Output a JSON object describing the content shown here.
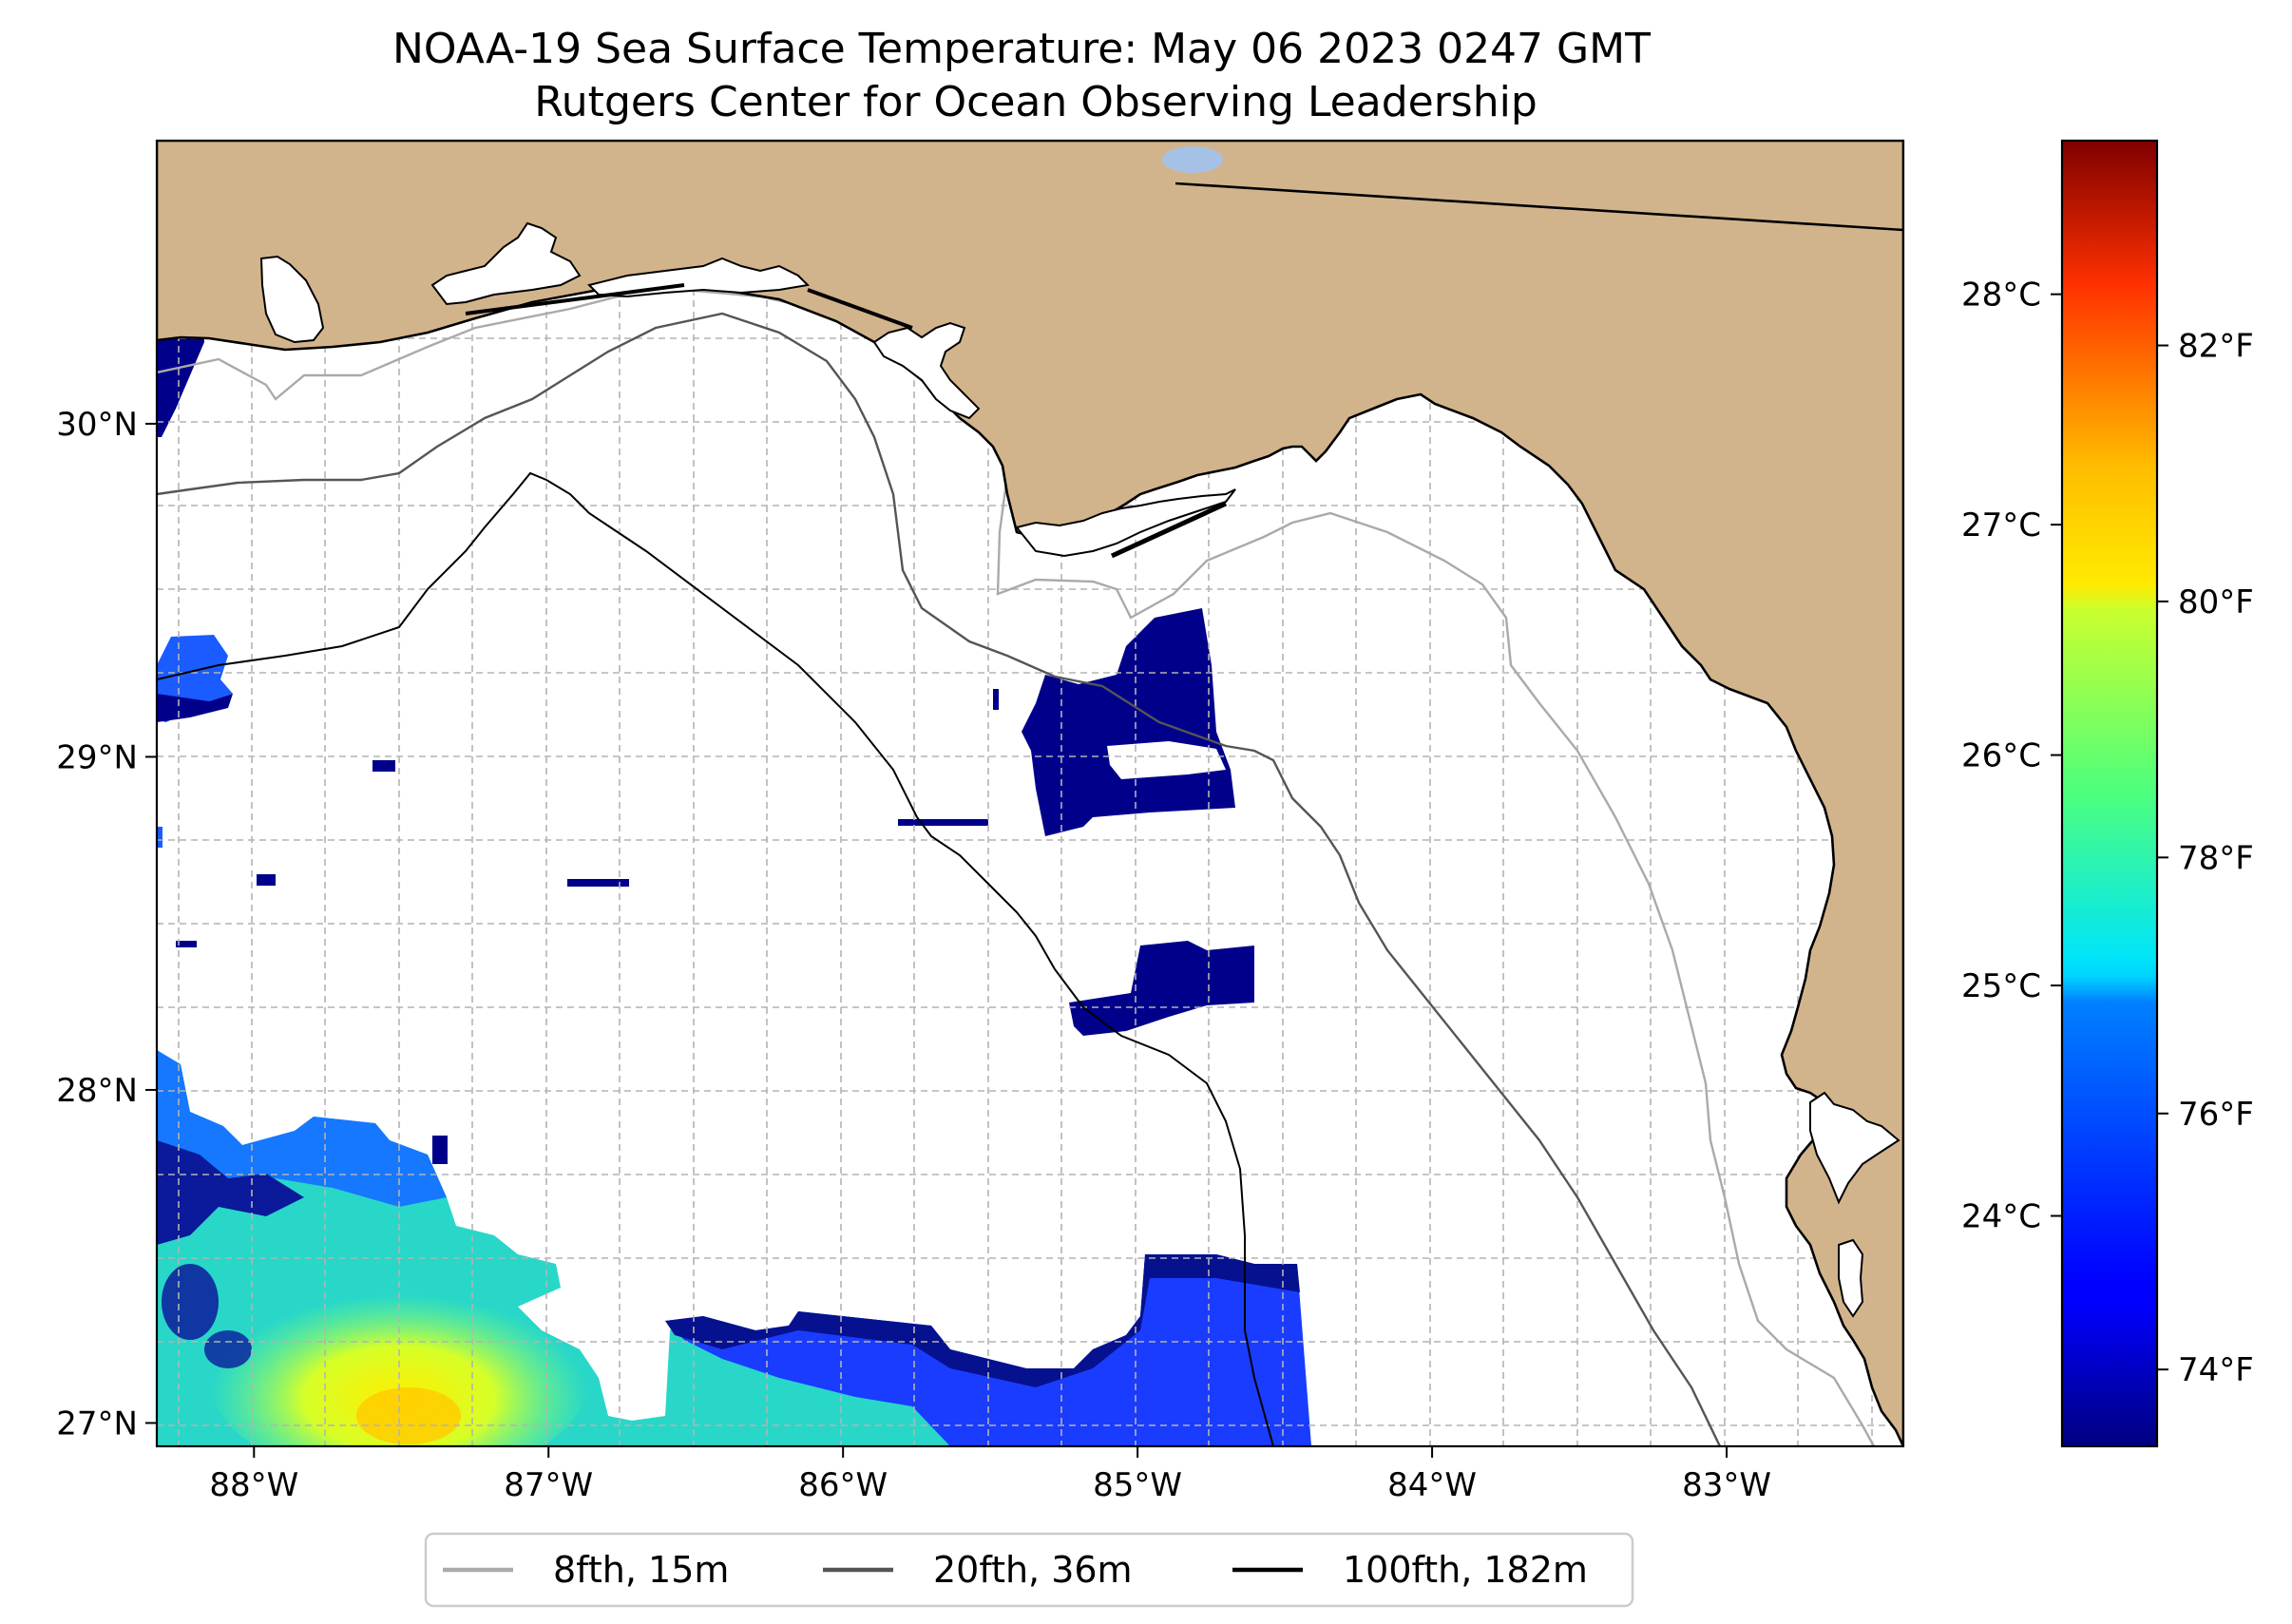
{
  "title": {
    "line1": "NOAA-19 Sea Surface Temperature: May 06 2023 0247 GMT",
    "line2": "Rutgers Center for Ocean Observing Leadership"
  },
  "map": {
    "lon_range": [
      -88.33,
      -82.4
    ],
    "lat_range": [
      26.93,
      30.85
    ],
    "lon_ticks": [
      {
        "value": -88,
        "label": "88°W"
      },
      {
        "value": -87,
        "label": "87°W"
      },
      {
        "value": -86,
        "label": "86°W"
      },
      {
        "value": -85,
        "label": "85°W"
      },
      {
        "value": -84,
        "label": "84°W"
      },
      {
        "value": -83,
        "label": "83°W"
      }
    ],
    "lat_ticks": [
      {
        "value": 27,
        "label": "27°N"
      },
      {
        "value": 28,
        "label": "28°N"
      },
      {
        "value": 29,
        "label": "29°N"
      },
      {
        "value": 30,
        "label": "30°N"
      }
    ],
    "grid": true,
    "colors": {
      "land": "#d2b48c",
      "ocean": "#ffffff",
      "lake": "#a6c1e6",
      "contour_8fth": "#aaaaaa",
      "contour_20fth": "#555555",
      "contour_100fth": "#000000"
    }
  },
  "colorbar": {
    "celsius_ticks": [
      {
        "value": 24,
        "label": "24°C"
      },
      {
        "value": 25,
        "label": "25°C"
      },
      {
        "value": 26,
        "label": "26°C"
      },
      {
        "value": 27,
        "label": "27°C"
      },
      {
        "value": 28,
        "label": "28°C"
      }
    ],
    "fahrenheit_ticks": [
      {
        "value": 74,
        "label": "74°F"
      },
      {
        "value": 76,
        "label": "76°F"
      },
      {
        "value": 78,
        "label": "78°F"
      },
      {
        "value": 80,
        "label": "80°F"
      },
      {
        "value": 82,
        "label": "82°F"
      }
    ],
    "range_f": [
      73.4,
      83.6
    ],
    "colormap": "jet"
  },
  "legend": {
    "items": [
      {
        "label": "8fth, 15m",
        "color": "#aaaaaa"
      },
      {
        "label": "20fth, 36m",
        "color": "#555555"
      },
      {
        "label": "100fth, 182m",
        "color": "#000000"
      }
    ],
    "placement": "bottom-center"
  }
}
